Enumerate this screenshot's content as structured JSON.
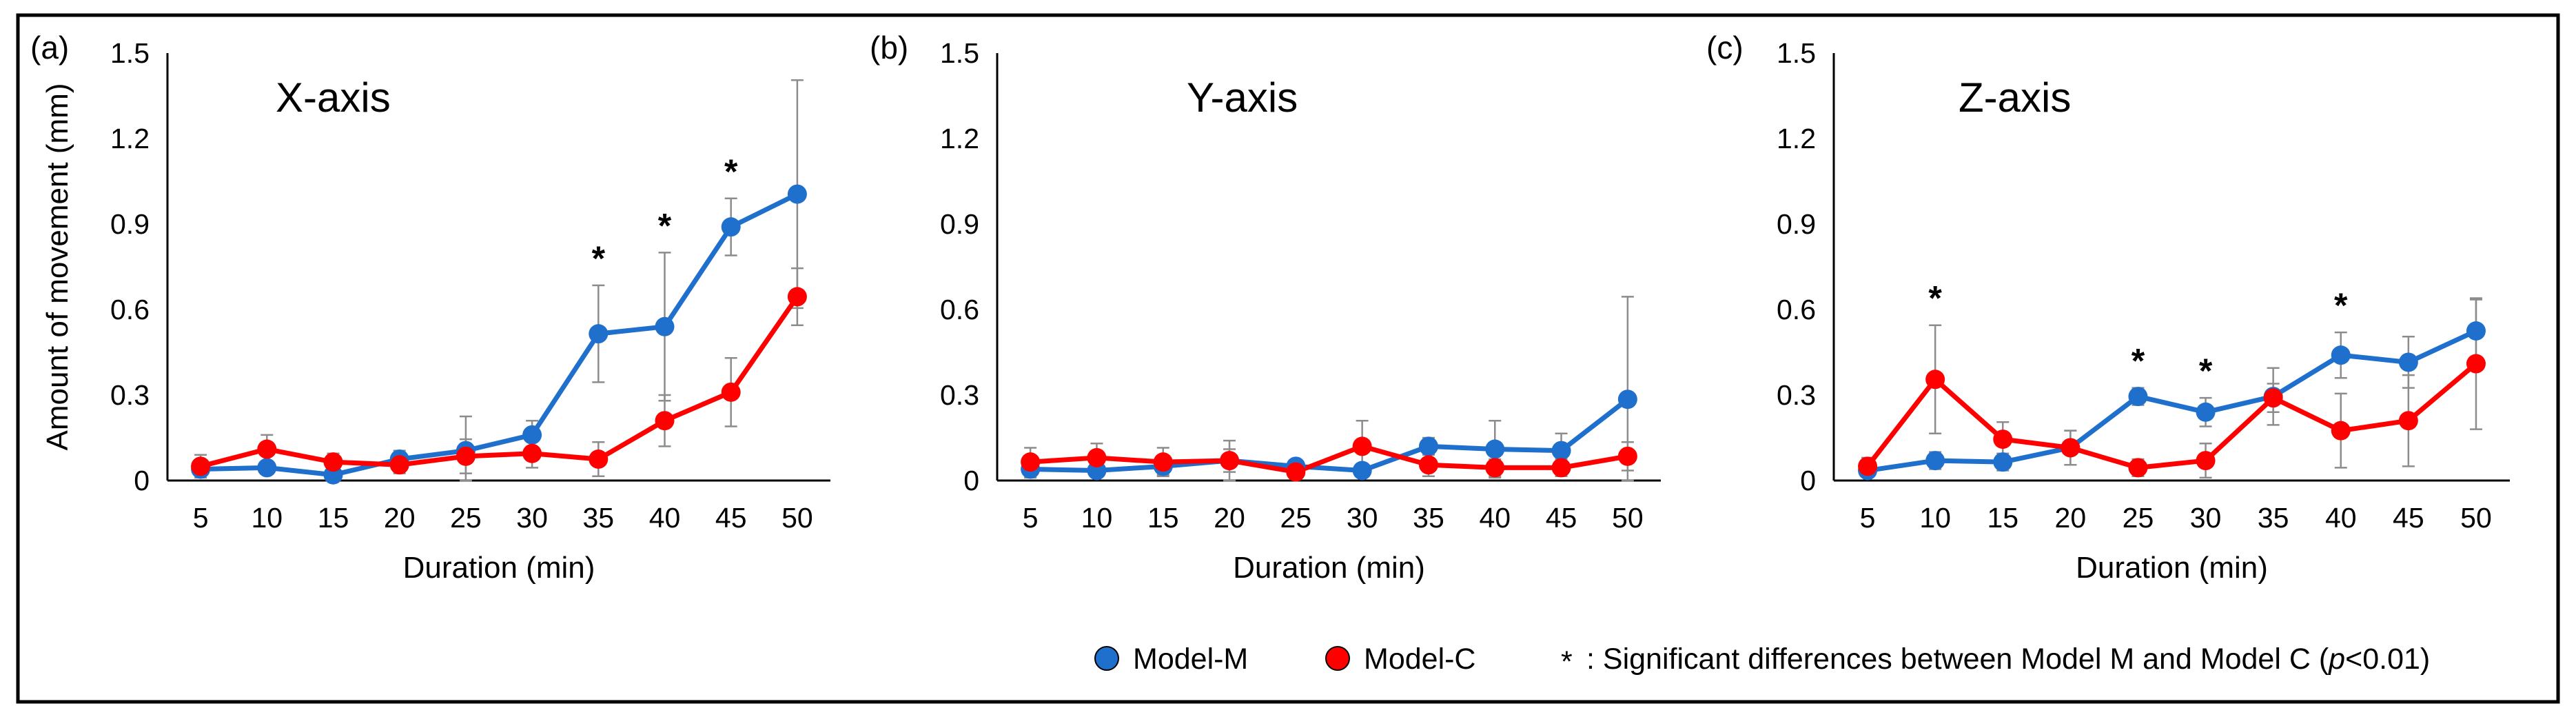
{
  "chart_data": [
    {
      "type": "line",
      "panel_label": "(a)",
      "title": "X-axis",
      "xlabel": "Duration (min)",
      "ylabel": "Amount of movement (mm)",
      "ylim": [
        0,
        1.5
      ],
      "yticks": [
        "0",
        "0.3",
        "0.6",
        "0.9",
        "1.2",
        "1.5"
      ],
      "x": [
        "5",
        "10",
        "15",
        "20",
        "25",
        "30",
        "35",
        "40",
        "45",
        "50"
      ],
      "series": [
        {
          "name": "Model-M",
          "color": "#1f6fcc",
          "values": [
            0.04,
            0.045,
            0.02,
            0.075,
            0.105,
            0.16,
            0.515,
            0.54,
            0.89,
            1.005
          ],
          "errors": [
            0.02,
            0.02,
            0.01,
            0.03,
            0.12,
            0.05,
            0.17,
            0.26,
            0.1,
            0.4
          ]
        },
        {
          "name": "Model-C",
          "color": "#ff0000",
          "values": [
            0.05,
            0.11,
            0.065,
            0.055,
            0.085,
            0.095,
            0.075,
            0.21,
            0.31,
            0.645
          ],
          "errors": [
            0.04,
            0.05,
            0.03,
            0.03,
            0.06,
            0.05,
            0.06,
            0.09,
            0.12,
            0.1
          ]
        }
      ],
      "significant": [
        "35",
        "40",
        "45"
      ]
    },
    {
      "type": "line",
      "panel_label": "(b)",
      "title": "Y-axis",
      "xlabel": "Duration (min)",
      "ylim": [
        0,
        1.5
      ],
      "yticks": [
        "0",
        "0.3",
        "0.6",
        "0.9",
        "1.2",
        "1.5"
      ],
      "x": [
        "5",
        "10",
        "15",
        "20",
        "25",
        "30",
        "35",
        "40",
        "45",
        "50"
      ],
      "series": [
        {
          "name": "Model-M",
          "color": "#1f6fcc",
          "values": [
            0.04,
            0.035,
            0.05,
            0.07,
            0.05,
            0.035,
            0.12,
            0.11,
            0.105,
            0.285
          ],
          "errors": [
            0.03,
            0.02,
            0.03,
            0.04,
            0.02,
            0.02,
            0.03,
            0.1,
            0.06,
            0.36
          ]
        },
        {
          "name": "Model-C",
          "color": "#ff0000",
          "values": [
            0.065,
            0.08,
            0.065,
            0.07,
            0.03,
            0.12,
            0.055,
            0.045,
            0.045,
            0.085
          ],
          "errors": [
            0.05,
            0.05,
            0.05,
            0.07,
            0.02,
            0.09,
            0.04,
            0.03,
            0.03,
            0.05
          ]
        }
      ],
      "significant": []
    },
    {
      "type": "line",
      "panel_label": "(c)",
      "title": "Z-axis",
      "xlabel": "Duration (min)",
      "ylim": [
        0,
        1.5
      ],
      "yticks": [
        "0",
        "0.3",
        "0.6",
        "0.9",
        "1.2",
        "1.5"
      ],
      "x": [
        "5",
        "10",
        "15",
        "20",
        "25",
        "30",
        "35",
        "40",
        "45",
        "50"
      ],
      "series": [
        {
          "name": "Model-M",
          "color": "#1f6fcc",
          "values": [
            0.035,
            0.07,
            0.065,
            0.115,
            0.295,
            0.24,
            0.295,
            0.44,
            0.415,
            0.525
          ],
          "errors": [
            0.02,
            0.03,
            0.03,
            0.06,
            0.03,
            0.05,
            0.1,
            0.08,
            0.09,
            0.11
          ]
        },
        {
          "name": "Model-C",
          "color": "#ff0000",
          "values": [
            0.05,
            0.355,
            0.145,
            0.115,
            0.045,
            0.07,
            0.29,
            0.175,
            0.21,
            0.41
          ],
          "errors": [
            0.03,
            0.19,
            0.06,
            0.06,
            0.03,
            0.06,
            0.05,
            0.13,
            0.16,
            0.23
          ]
        }
      ],
      "significant": [
        "10",
        "25",
        "30",
        "40"
      ]
    }
  ],
  "legend": {
    "items": [
      {
        "name": "Model-M",
        "color": "#1f6fcc"
      },
      {
        "name": "Model-C",
        "color": "#ff0000"
      }
    ],
    "star_symbol": "*",
    "note_prefix": ": Significant differences between Model M and Model C (",
    "note_p": "p",
    "note_suffix": "<0.01)"
  },
  "significance_marker": "*"
}
